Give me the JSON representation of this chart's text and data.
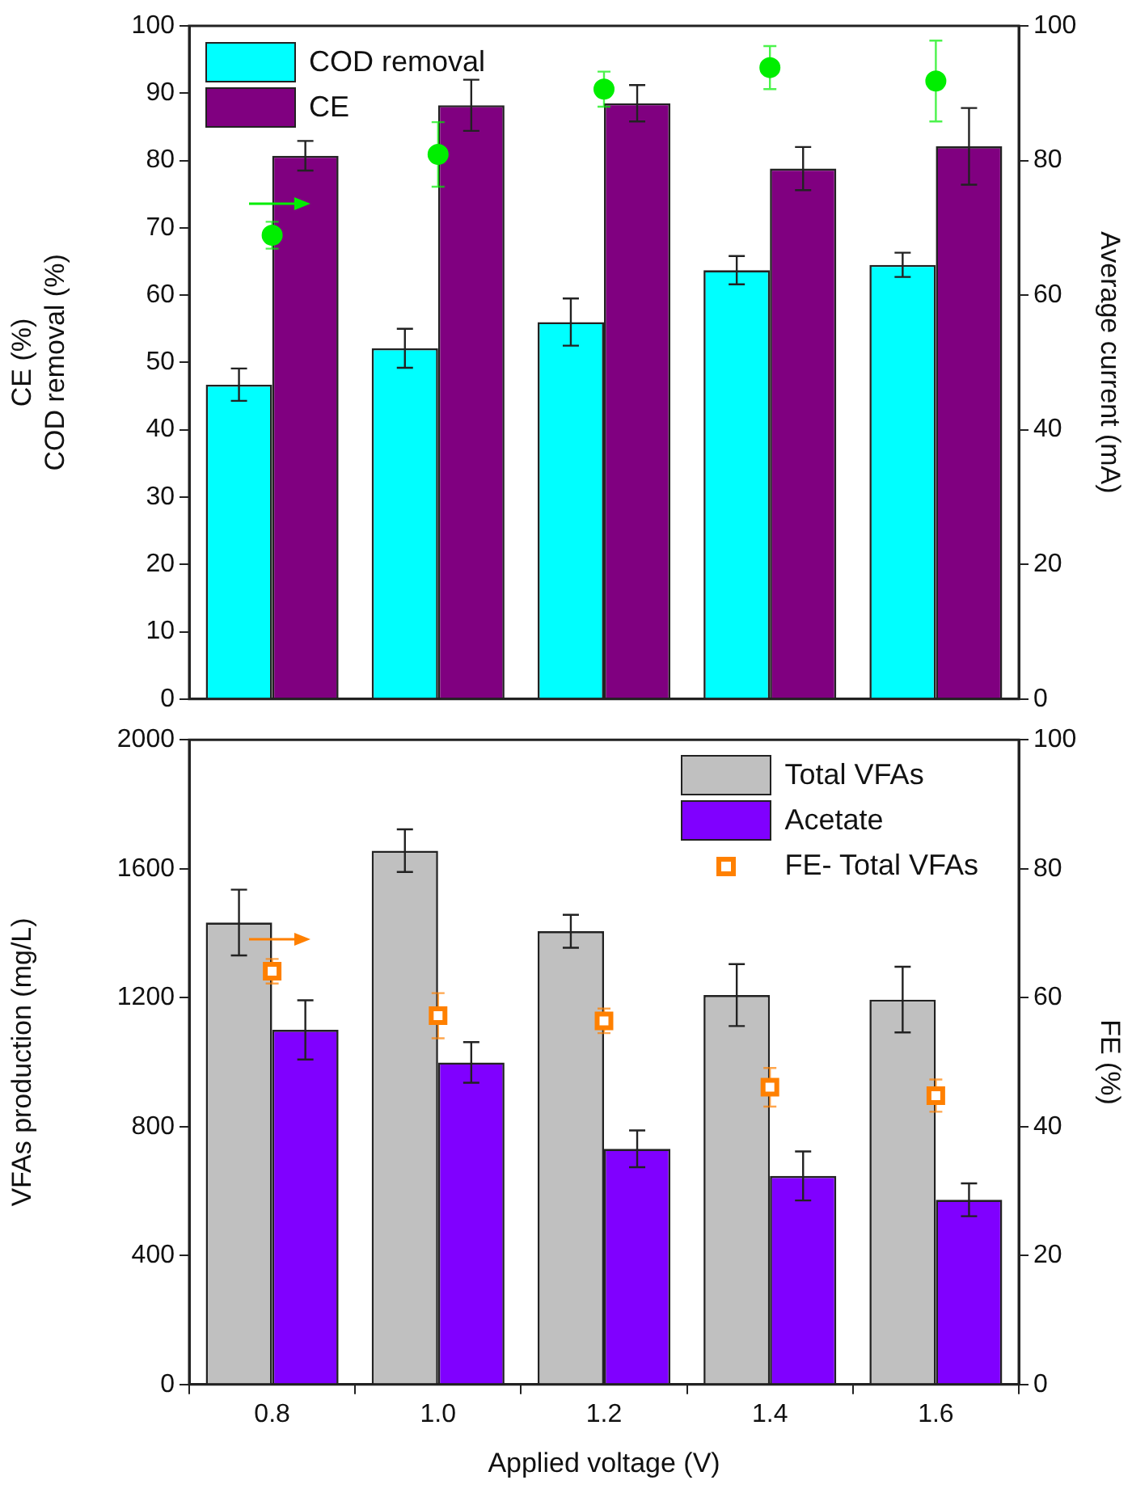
{
  "chart_data": [
    {
      "type": "bar",
      "categories": [
        "0.8",
        "1.0",
        "1.2",
        "1.4",
        "1.6"
      ],
      "ylabel": "CE (%)\nCOD removal (%)",
      "y2label": "Average current (mA)",
      "ylim": [
        0,
        100
      ],
      "yticks": [
        0,
        10,
        20,
        30,
        40,
        50,
        60,
        70,
        80,
        90,
        100
      ],
      "y2lim": [
        0,
        100
      ],
      "y2ticks": [
        0,
        20,
        40,
        60,
        80,
        100
      ],
      "tick_labels": "y",
      "grid": false,
      "legend": "top left",
      "series": [
        {
          "name": "COD removal",
          "color": "#00ffff",
          "values": [
            46.7,
            52.1,
            56.0,
            63.7,
            64.5
          ],
          "errors": [
            2.4,
            2.9,
            3.5,
            2.1,
            1.8
          ]
        },
        {
          "name": "CE",
          "color": "#800080",
          "values": [
            80.7,
            88.2,
            88.5,
            78.8,
            82.1
          ],
          "errors": [
            2.2,
            3.8,
            2.7,
            3.2,
            5.7
          ]
        },
        {
          "type": "scatter",
          "axis": "y2",
          "marker": "circle",
          "color": "#00ee00",
          "x": [
            "0.8",
            "1.0",
            "1.2",
            "1.4",
            "1.6"
          ],
          "values": [
            68.9,
            80.9,
            90.6,
            93.8,
            91.8
          ],
          "errors": [
            2,
            4.8,
            2.6,
            3.2,
            6
          ]
        }
      ]
    },
    {
      "type": "bar",
      "categories": [
        "0.8",
        "1.0",
        "1.2",
        "1.4",
        "1.6"
      ],
      "xlabel": "Applied voltage (V)",
      "ylabel": "VFAs production (mg/L)",
      "y2label": "FE (%)",
      "ylim": [
        0,
        2000
      ],
      "yticks": [
        0,
        400,
        800,
        1200,
        1600,
        2000
      ],
      "y2lim": [
        0,
        100
      ],
      "y2ticks": [
        0,
        20,
        40,
        60,
        80,
        100
      ],
      "grid": false,
      "legend": "top right",
      "series": [
        {
          "name": "Total VFAs",
          "color": "#c0c0c0",
          "values": [
            1433,
            1656,
            1406,
            1208,
            1194
          ],
          "errors": [
            102,
            66,
            51,
            96,
            102
          ]
        },
        {
          "name": "Acetate",
          "color": "#8000ff",
          "values": [
            1100,
            999,
            731,
            647,
            573
          ],
          "errors": [
            92,
            63,
            57,
            76,
            51
          ]
        },
        {
          "name": "FE- Total VFAs",
          "type": "scatter",
          "axis": "y2",
          "marker": "square",
          "color": "#ff8000",
          "x": [
            "0.8",
            "1.0",
            "1.2",
            "1.4",
            "1.6"
          ],
          "values": [
            64.1,
            57.2,
            56.4,
            46.1,
            44.8
          ],
          "errors": [
            1.9,
            3.5,
            1.9,
            3,
            2.5
          ]
        }
      ]
    }
  ]
}
